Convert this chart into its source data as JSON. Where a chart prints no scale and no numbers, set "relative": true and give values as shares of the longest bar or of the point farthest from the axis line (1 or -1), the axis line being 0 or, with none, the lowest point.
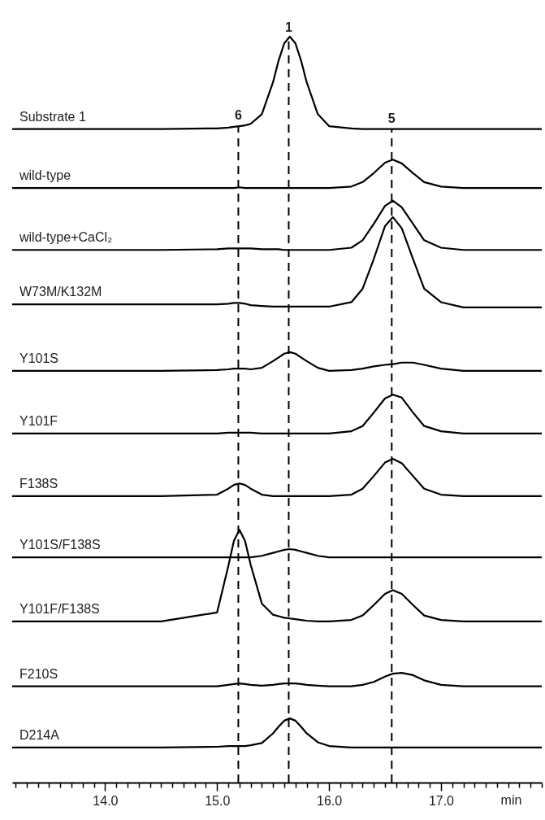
{
  "chart_data": {
    "type": "line",
    "relative": true,
    "xlabel": "min",
    "legend": false,
    "line_style": "solid",
    "marker": "none",
    "xlim": [
      13.17,
      17.9
    ],
    "xticks": [
      {
        "value": 13.2,
        "label": null
      },
      {
        "value": 13.3,
        "label": null
      },
      {
        "value": 13.4,
        "label": null
      },
      {
        "value": 13.5,
        "label": null
      },
      {
        "value": 13.6,
        "label": null
      },
      {
        "value": 13.7,
        "label": null
      },
      {
        "value": 13.8,
        "label": null
      },
      {
        "value": 13.9,
        "label": null
      },
      {
        "value": 14,
        "label": "14.0"
      },
      {
        "value": 14.1,
        "label": null
      },
      {
        "value": 14.2,
        "label": null
      },
      {
        "value": 14.3,
        "label": null
      },
      {
        "value": 14.4,
        "label": null
      },
      {
        "value": 14.5,
        "label": null
      },
      {
        "value": 14.6,
        "label": null
      },
      {
        "value": 14.7,
        "label": null
      },
      {
        "value": 14.8,
        "label": null
      },
      {
        "value": 14.9,
        "label": null
      },
      {
        "value": 15,
        "label": "15.0"
      },
      {
        "value": 15.1,
        "label": null
      },
      {
        "value": 15.2,
        "label": null
      },
      {
        "value": 15.3,
        "label": null
      },
      {
        "value": 15.4,
        "label": null
      },
      {
        "value": 15.5,
        "label": null
      },
      {
        "value": 15.6,
        "label": null
      },
      {
        "value": 15.7,
        "label": null
      },
      {
        "value": 15.8,
        "label": null
      },
      {
        "value": 15.9,
        "label": null
      },
      {
        "value": 16,
        "label": "16.0"
      },
      {
        "value": 16.1,
        "label": null
      },
      {
        "value": 16.2,
        "label": null
      },
      {
        "value": 16.3,
        "label": null
      },
      {
        "value": 16.4,
        "label": null
      },
      {
        "value": 16.5,
        "label": null
      },
      {
        "value": 16.6,
        "label": null
      },
      {
        "value": 16.7,
        "label": null
      },
      {
        "value": 16.8,
        "label": null
      },
      {
        "value": 16.9,
        "label": null
      },
      {
        "value": 17,
        "label": "17.0"
      },
      {
        "value": 17.1,
        "label": null
      },
      {
        "value": 17.2,
        "label": null
      },
      {
        "value": 17.3,
        "label": null
      },
      {
        "value": 17.4,
        "label": null
      },
      {
        "value": 17.5,
        "label": null
      },
      {
        "value": 17.6,
        "label": null
      },
      {
        "value": 17.7,
        "label": null
      },
      {
        "value": 17.8,
        "label": null
      },
      {
        "value": 17.9,
        "label": null
      }
    ],
    "x": [
      13.17,
      14.5,
      15.0,
      15.1,
      15.15,
      15.2,
      15.25,
      15.3,
      15.4,
      15.5,
      15.55,
      15.6,
      15.65,
      15.7,
      15.75,
      15.8,
      15.9,
      16.0,
      16.2,
      16.3,
      16.4,
      16.5,
      16.57,
      16.65,
      16.75,
      16.85,
      17.0,
      17.2,
      17.9
    ],
    "series": [
      {
        "name": "Substrate 1",
        "color": "#000000",
        "values": [
          0.876,
          0.876,
          0.877,
          0.878,
          0.879,
          0.88,
          0.881,
          0.883,
          0.896,
          0.939,
          0.968,
          0.991,
          1.0,
          0.991,
          0.968,
          0.939,
          0.896,
          0.88,
          0.877,
          0.876,
          0.876,
          0.876,
          0.876,
          0.876,
          0.876,
          0.876,
          0.876,
          0.876,
          0.876
        ]
      },
      {
        "name": "wild-type",
        "color": "#000000",
        "values": [
          0.797,
          0.797,
          0.797,
          0.797,
          0.797,
          0.798,
          0.797,
          0.797,
          0.797,
          0.797,
          0.797,
          0.797,
          0.797,
          0.797,
          0.797,
          0.797,
          0.797,
          0.797,
          0.799,
          0.805,
          0.817,
          0.831,
          0.835,
          0.83,
          0.817,
          0.805,
          0.799,
          0.797,
          0.797
        ]
      },
      {
        "name": "wild-type+CaCl₂",
        "color": "#000000",
        "values": [
          0.714,
          0.714,
          0.715,
          0.716,
          0.716,
          0.716,
          0.716,
          0.716,
          0.715,
          0.715,
          0.715,
          0.714,
          0.714,
          0.714,
          0.714,
          0.714,
          0.714,
          0.714,
          0.717,
          0.727,
          0.749,
          0.773,
          0.78,
          0.771,
          0.749,
          0.727,
          0.717,
          0.714,
          0.714
        ]
      },
      {
        "name": "W73M/K132M",
        "color": "#000000",
        "values": [
          0.641,
          0.641,
          0.641,
          0.642,
          0.643,
          0.643,
          0.642,
          0.64,
          0.639,
          0.638,
          0.638,
          0.638,
          0.638,
          0.638,
          0.638,
          0.638,
          0.638,
          0.638,
          0.644,
          0.662,
          0.702,
          0.746,
          0.758,
          0.743,
          0.702,
          0.662,
          0.644,
          0.637,
          0.637
        ]
      },
      {
        "name": "Y101S",
        "color": "#000000",
        "values": [
          0.552,
          0.552,
          0.553,
          0.554,
          0.555,
          0.555,
          0.555,
          0.554,
          0.556,
          0.565,
          0.57,
          0.575,
          0.577,
          0.575,
          0.57,
          0.565,
          0.556,
          0.552,
          0.553,
          0.555,
          0.558,
          0.56,
          0.561,
          0.563,
          0.563,
          0.56,
          0.555,
          0.552,
          0.552
        ]
      },
      {
        "name": "Y101F",
        "color": "#000000",
        "values": [
          0.468,
          0.468,
          0.468,
          0.469,
          0.469,
          0.469,
          0.469,
          0.469,
          0.468,
          0.468,
          0.468,
          0.468,
          0.468,
          0.468,
          0.468,
          0.468,
          0.468,
          0.468,
          0.471,
          0.478,
          0.496,
          0.515,
          0.52,
          0.516,
          0.496,
          0.478,
          0.471,
          0.468,
          0.468
        ]
      },
      {
        "name": "F138S",
        "color": "#000000",
        "values": [
          0.384,
          0.384,
          0.386,
          0.394,
          0.399,
          0.401,
          0.399,
          0.394,
          0.386,
          0.384,
          0.384,
          0.384,
          0.384,
          0.384,
          0.384,
          0.384,
          0.384,
          0.384,
          0.386,
          0.394,
          0.411,
          0.429,
          0.434,
          0.428,
          0.411,
          0.394,
          0.386,
          0.384,
          0.384
        ]
      },
      {
        "name": "Y101S/F138S",
        "color": "#000000",
        "values": [
          0.302,
          0.302,
          0.302,
          0.302,
          0.302,
          0.302,
          0.302,
          0.302,
          0.304,
          0.308,
          0.31,
          0.312,
          0.313,
          0.312,
          0.31,
          0.308,
          0.304,
          0.302,
          0.302,
          0.302,
          0.302,
          0.302,
          0.302,
          0.302,
          0.302,
          0.302,
          0.302,
          0.302,
          0.302
        ]
      },
      {
        "name": "Y101F/F138S",
        "color": "#000000",
        "values": [
          0.216,
          0.216,
          0.228,
          0.29,
          0.324,
          0.339,
          0.324,
          0.292,
          0.24,
          0.225,
          0.223,
          0.221,
          0.22,
          0.219,
          0.218,
          0.217,
          0.216,
          0.216,
          0.218,
          0.224,
          0.238,
          0.253,
          0.258,
          0.253,
          0.238,
          0.224,
          0.218,
          0.216,
          0.216
        ]
      },
      {
        "name": "F210S",
        "color": "#000000",
        "values": [
          0.129,
          0.129,
          0.129,
          0.131,
          0.132,
          0.133,
          0.132,
          0.131,
          0.13,
          0.131,
          0.132,
          0.133,
          0.133,
          0.133,
          0.132,
          0.131,
          0.13,
          0.129,
          0.129,
          0.131,
          0.135,
          0.142,
          0.146,
          0.147,
          0.144,
          0.137,
          0.131,
          0.129,
          0.129
        ]
      },
      {
        "name": "D214A",
        "color": "#000000",
        "values": [
          0.047,
          0.047,
          0.048,
          0.049,
          0.049,
          0.049,
          0.049,
          0.05,
          0.053,
          0.066,
          0.075,
          0.083,
          0.086,
          0.083,
          0.075,
          0.066,
          0.054,
          0.049,
          0.047,
          0.047,
          0.047,
          0.047,
          0.047,
          0.047,
          0.047,
          0.047,
          0.047,
          0.047,
          0.047
        ]
      }
    ],
    "ref_lines": [
      {
        "axis": "x",
        "value": 15.19,
        "line_style": "dashed",
        "color": "#000000"
      },
      {
        "axis": "x",
        "value": 15.64,
        "line_style": "dashed",
        "color": "#000000"
      },
      {
        "axis": "x",
        "value": 16.56,
        "line_style": "dashed",
        "color": "#000000"
      }
    ],
    "annotations": [
      "6",
      "1",
      "5"
    ]
  }
}
